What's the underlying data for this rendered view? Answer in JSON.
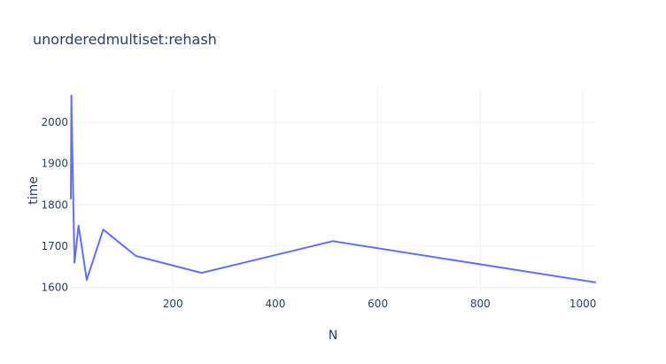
{
  "chart_data": {
    "type": "line",
    "title": "unorderedmultiset:rehash",
    "xlabel": "N",
    "ylabel": "time",
    "x": [
      1,
      2,
      4,
      8,
      16,
      32,
      64,
      128,
      256,
      512,
      1024
    ],
    "series": [
      {
        "values": [
          1815,
          2065,
          1930,
          1660,
          1750,
          1618,
          1740,
          1676,
          1635,
          1712,
          1612
        ],
        "color": "#636efa"
      }
    ],
    "xlim": [
      1,
      1024
    ],
    "ylim": [
      1588,
      2082
    ],
    "xticks": [
      200,
      400,
      600,
      800,
      1000
    ],
    "xtick_labels": [
      "200",
      "400",
      "600",
      "800",
      "1000"
    ],
    "yticks": [
      1600,
      1700,
      1800,
      1900,
      2000
    ],
    "ytick_labels": [
      "1600",
      "1700",
      "1800",
      "1900",
      "2000"
    ],
    "grid": true,
    "legend": "none"
  }
}
